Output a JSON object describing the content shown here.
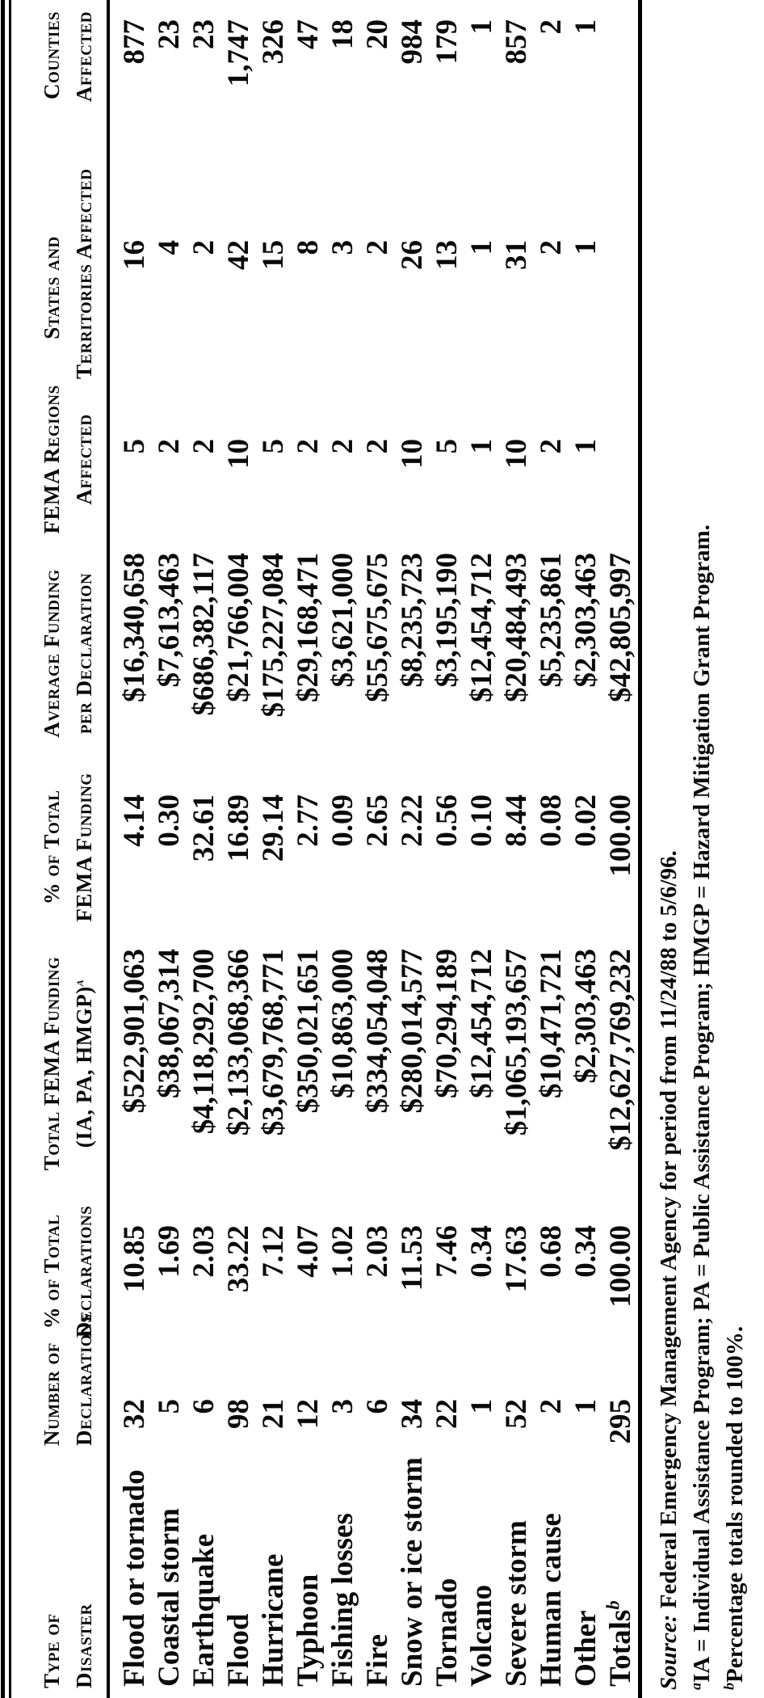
{
  "colors": {
    "paper": "#ffffff",
    "ink": "#0a0a0a"
  },
  "table": {
    "columns": [
      {
        "id": "type",
        "line1": "Type of",
        "line2": "Disaster"
      },
      {
        "id": "num-decl",
        "line1": "Number of",
        "line2": "Declarations"
      },
      {
        "id": "pct-decl",
        "line1": "% of Total",
        "line2": "Declarations"
      },
      {
        "id": "total-funding",
        "line1": "Total FEMA Funding",
        "line2": "(IA, PA, HMGP)",
        "sup": "a"
      },
      {
        "id": "pct-funding",
        "line1": "% of Total",
        "line2": "FEMA Funding"
      },
      {
        "id": "avg-funding",
        "line1": "Average Funding",
        "line2": "per Declaration"
      },
      {
        "id": "fema-regions",
        "line1": "FEMA Regions",
        "line2": "Affected"
      },
      {
        "id": "states",
        "line1": "States and",
        "line2": "Territories Affected"
      },
      {
        "id": "counties",
        "line1": "Counties",
        "line2": "Affected"
      }
    ],
    "rows": [
      [
        "Flood or tornado",
        "32",
        "10.85",
        "$522,901,063",
        "4.14",
        "$16,340,658",
        "5",
        "16",
        "877"
      ],
      [
        "Coastal storm",
        "5",
        "1.69",
        "$38,067,314",
        "0.30",
        "$7,613,463",
        "2",
        "4",
        "23"
      ],
      [
        "Earthquake",
        "6",
        "2.03",
        "$4,118,292,700",
        "32.61",
        "$686,382,117",
        "2",
        "2",
        "23"
      ],
      [
        "Flood",
        "98",
        "33.22",
        "$2,133,068,366",
        "16.89",
        "$21,766,004",
        "10",
        "42",
        "1,747"
      ],
      [
        "Hurricane",
        "21",
        "7.12",
        "$3,679,768,771",
        "29.14",
        "$175,227,084",
        "5",
        "15",
        "326"
      ],
      [
        "Typhoon",
        "12",
        "4.07",
        "$350,021,651",
        "2.77",
        "$29,168,471",
        "2",
        "8",
        "47"
      ],
      [
        "Fishing losses",
        "3",
        "1.02",
        "$10,863,000",
        "0.09",
        "$3,621,000",
        "2",
        "3",
        "18"
      ],
      [
        "Fire",
        "6",
        "2.03",
        "$334,054,048",
        "2.65",
        "$55,675,675",
        "2",
        "2",
        "20"
      ],
      [
        "Snow or ice storm",
        "34",
        "11.53",
        "$280,014,577",
        "2.22",
        "$8,235,723",
        "10",
        "26",
        "984"
      ],
      [
        "Tornado",
        "22",
        "7.46",
        "$70,294,189",
        "0.56",
        "$3,195,190",
        "5",
        "13",
        "179"
      ],
      [
        "Volcano",
        "1",
        "0.34",
        "$12,454,712",
        "0.10",
        "$12,454,712",
        "1",
        "1",
        "1"
      ],
      [
        "Severe storm",
        "52",
        "17.63",
        "$1,065,193,657",
        "8.44",
        "$20,484,493",
        "10",
        "31",
        "857"
      ],
      [
        "Human cause",
        "2",
        "0.68",
        "$10,471,721",
        "0.08",
        "$5,235,861",
        "2",
        "2",
        "2"
      ],
      [
        "Other",
        "1",
        "0.34",
        "$2,303,463",
        "0.02",
        "$2,303,463",
        "1",
        "1",
        "1"
      ],
      [
        "Totals",
        "295",
        "100.00",
        "$12,627,769,232",
        "100.00",
        "$42,805,997",
        "",
        "",
        ""
      ]
    ],
    "totals_sup": "b"
  },
  "footnotes": {
    "source_label": "Source:",
    "source_text": " Federal Emergency Management Agency for period from 11/24/88 to 5/6/96.",
    "a_marker": "a",
    "a_text": "IA = Individual Assistance Program; PA = Public Assistance Program; HMGP = Hazard Mitigation Grant Program.",
    "b_marker": "b",
    "b_text": "Percentage totals rounded to 100%."
  }
}
